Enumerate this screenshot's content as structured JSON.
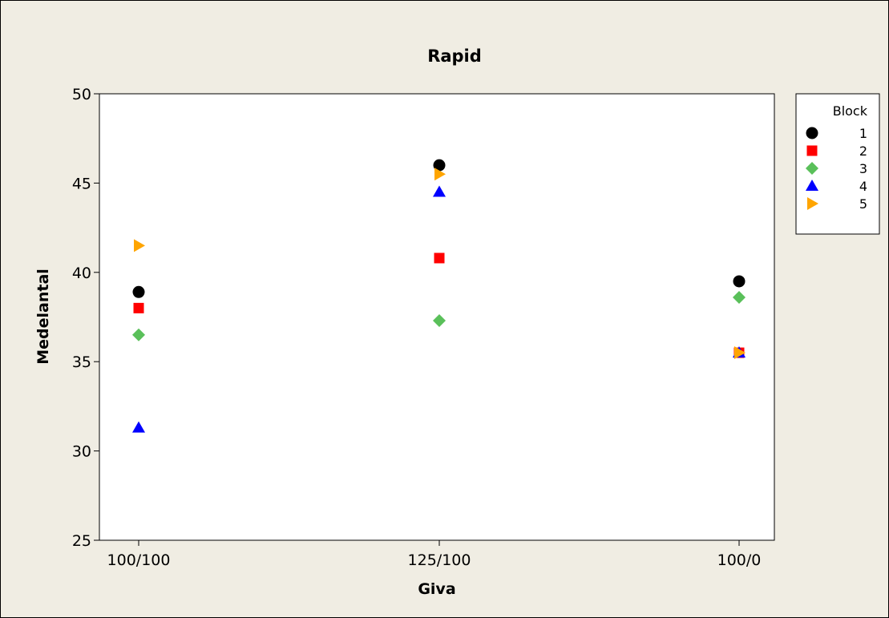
{
  "chart_data": {
    "type": "scatter",
    "title": "Rapid",
    "xlabel": "Giva",
    "ylabel": "Medelantal",
    "categories": [
      "100/100",
      "125/100",
      "100/0"
    ],
    "ylim": [
      25,
      50
    ],
    "yticks": [
      25,
      30,
      35,
      40,
      45,
      50
    ],
    "grid": false,
    "legend": {
      "title": "Block",
      "placement": "right"
    },
    "series": [
      {
        "name": "1",
        "marker": "circle",
        "color": "#000000",
        "values": [
          38.9,
          46.0,
          39.5
        ]
      },
      {
        "name": "2",
        "marker": "square",
        "color": "#ff0000",
        "values": [
          38.0,
          40.8,
          35.5
        ]
      },
      {
        "name": "3",
        "marker": "diamond",
        "color": "#5ac05a",
        "values": [
          36.5,
          37.3,
          38.6
        ]
      },
      {
        "name": "4",
        "marker": "triangle-up",
        "color": "#0000ff",
        "values": [
          31.3,
          44.5,
          35.5
        ]
      },
      {
        "name": "5",
        "marker": "triangle-right",
        "color": "#ffa500",
        "values": [
          41.5,
          45.5,
          35.5
        ]
      }
    ]
  },
  "colors": {
    "panel_background": "#f0ede3",
    "plot_background": "#ffffff",
    "frame": "#000000"
  }
}
